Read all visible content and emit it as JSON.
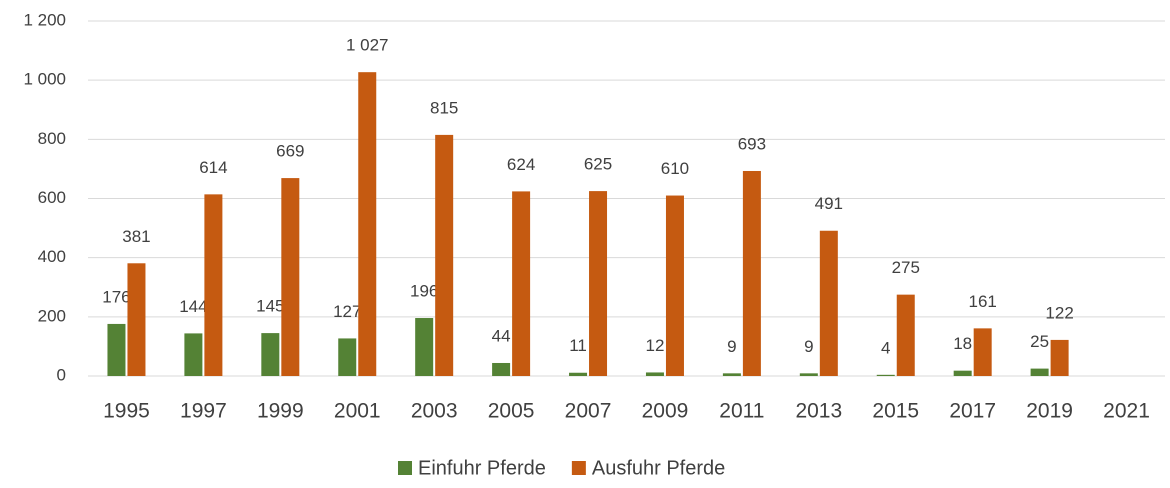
{
  "chart_data": {
    "type": "bar",
    "categories": [
      "1995",
      "1997",
      "1999",
      "2001",
      "2003",
      "2005",
      "2007",
      "2009",
      "2011",
      "2013",
      "2015",
      "2017",
      "2019",
      "2021"
    ],
    "series": [
      {
        "name": "Einfuhr Pferde",
        "color": "#548235",
        "values": [
          176,
          144,
          145,
          127,
          196,
          44,
          11,
          12,
          9,
          9,
          4,
          18,
          25,
          null
        ]
      },
      {
        "name": "Ausfuhr Pferde",
        "color": "#c55a11",
        "values": [
          381,
          614,
          669,
          1027,
          815,
          624,
          625,
          610,
          693,
          491,
          275,
          161,
          122,
          null
        ],
        "value_labels": [
          "381",
          "614",
          "669",
          "1 027",
          "815",
          "624",
          "625",
          "610",
          "693",
          "491",
          "275",
          "161",
          "122",
          null
        ]
      }
    ],
    "ylim": [
      0,
      1200
    ],
    "yticks": [
      0,
      200,
      400,
      600,
      800,
      {
        "value": 1000,
        "label": "1 000"
      },
      {
        "value": 1200,
        "label": "1 200"
      }
    ],
    "grid": true,
    "legend": "bottom"
  }
}
